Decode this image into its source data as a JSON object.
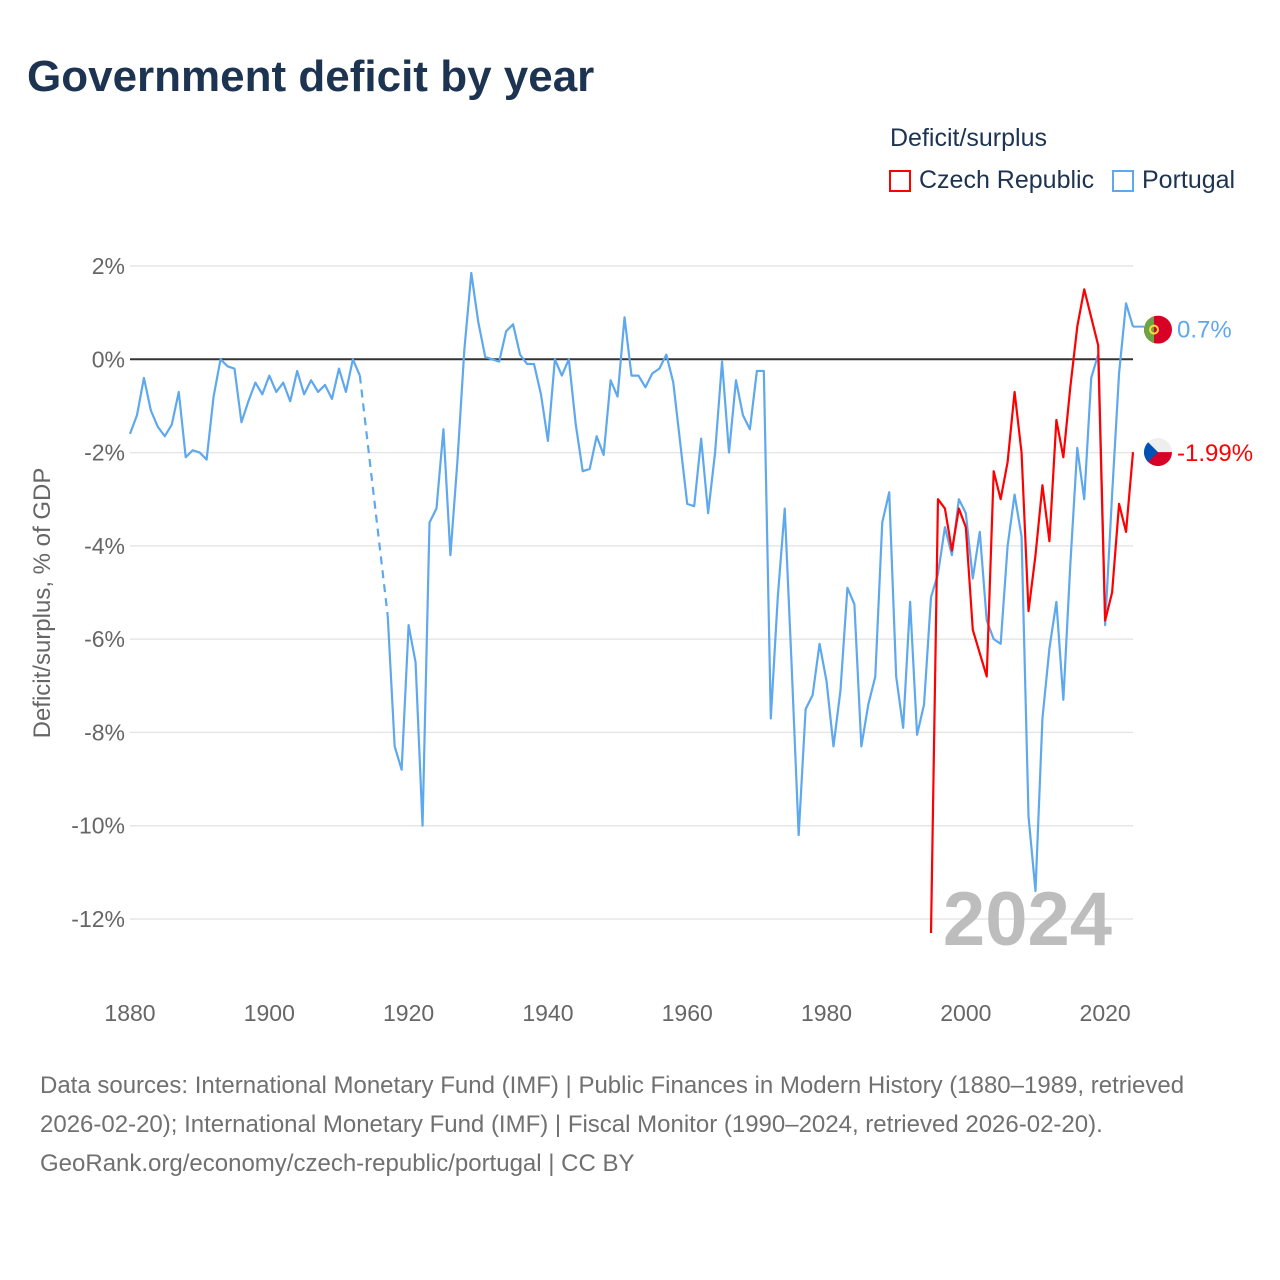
{
  "title": "Government deficit by year",
  "legend": {
    "title": "Deficit/surplus",
    "items": [
      "Czech Republic",
      "Portugal"
    ]
  },
  "footer": {
    "sources": "Data sources: International Monetary Fund (IMF) | Public Finances in Modern History (1880–1989, retrieved 2026-02-20); International Monetary Fund (IMF) | Fiscal Monitor (1990–2024, retrieved 2026-02-20).",
    "credit": "GeoRank.org/economy/czech-republic/portugal | CC BY"
  },
  "chart_data": {
    "type": "line",
    "title": "Government deficit by year",
    "xlabel": "",
    "ylabel": "Deficit/surplus, % of GDP",
    "xlim": [
      1880,
      2024
    ],
    "ylim": [
      -12,
      2
    ],
    "yticks": [
      2,
      0,
      -2,
      -4,
      -6,
      -8,
      -10,
      -12
    ],
    "ytick_labels": [
      "2%",
      "0%",
      "-2%",
      "-4%",
      "-6%",
      "-8%",
      "-10%",
      "-12%"
    ],
    "xticks": [
      1880,
      1900,
      1920,
      1940,
      1960,
      1980,
      2000,
      2020
    ],
    "year_marker": "2024",
    "grid": true,
    "legend_position": "top-right",
    "series": [
      {
        "name": "Czech Republic",
        "color": "#ff0000",
        "end_label": "-1.99%",
        "start": 1995,
        "values": [
          -12.3,
          -3.0,
          -3.2,
          -4.1,
          -3.2,
          -3.6,
          -5.8,
          -6.3,
          -6.8,
          -2.4,
          -3.0,
          -2.2,
          -0.7,
          -2.0,
          -5.4,
          -4.2,
          -2.7,
          -3.9,
          -1.3,
          -2.1,
          -0.6,
          0.7,
          1.5,
          0.9,
          0.3,
          -5.6,
          -5.0,
          -3.1,
          -3.7,
          -1.99
        ]
      },
      {
        "name": "Portugal",
        "color": "#5ea8ee",
        "end_label": "0.7%",
        "start": 1880,
        "values": [
          -1.6,
          -1.2,
          -0.4,
          -1.1,
          -1.45,
          -1.65,
          -1.4,
          -0.7,
          -2.1,
          -1.95,
          -2.0,
          -2.15,
          -0.8,
          0,
          -0.15,
          -0.2,
          -1.35,
          -0.9,
          -0.5,
          -0.75,
          -0.35,
          -0.7,
          -0.5,
          -0.9,
          -0.25,
          -0.75,
          -0.45,
          -0.7,
          -0.55,
          -0.85,
          -0.2,
          -0.7,
          0,
          -0.35,
          null,
          null,
          null,
          -5.5,
          -8.3,
          -8.8,
          -5.7,
          -6.5,
          -10.0,
          -3.5,
          -3.2,
          -1.5,
          -4.2,
          -2.2,
          0.2,
          1.85,
          0.8,
          0.05,
          0,
          -0.05,
          0.6,
          0.75,
          0.1,
          -0.1,
          -0.1,
          -0.75,
          -1.75,
          0,
          -0.35,
          0,
          -1.4,
          -2.4,
          -2.35,
          -1.65,
          -2.05,
          -0.45,
          -0.8,
          0.9,
          -0.35,
          -0.35,
          -0.6,
          -0.3,
          -0.2,
          0.1,
          -0.5,
          -1.8,
          -3.1,
          -3.15,
          -1.7,
          -3.3,
          -2.0,
          -0.05,
          -2.0,
          -0.45,
          -1.2,
          -1.5,
          -0.25,
          -0.25,
          -7.7,
          -5.1,
          -3.2,
          -6.6,
          -10.2,
          -7.5,
          -7.2,
          -6.1,
          -6.9,
          -8.3,
          -7.1,
          -4.9,
          -5.25,
          -8.3,
          -7.4,
          -6.8,
          -3.5,
          -2.85,
          -6.8,
          -7.9,
          -5.2,
          -8.05,
          -7.4,
          -5.1,
          -4.6,
          -3.6,
          -4.2,
          -3.0,
          -3.3,
          -4.7,
          -3.7,
          -5.6,
          -6.0,
          -6.1,
          -4.0,
          -2.9,
          -3.8,
          -9.8,
          -11.4,
          -7.7,
          -6.2,
          -5.2,
          -7.3,
          -4.4,
          -1.9,
          -3.0,
          -0.4,
          0.1,
          -5.7,
          -2.9,
          -0.3,
          1.2,
          0.7
        ]
      }
    ]
  }
}
